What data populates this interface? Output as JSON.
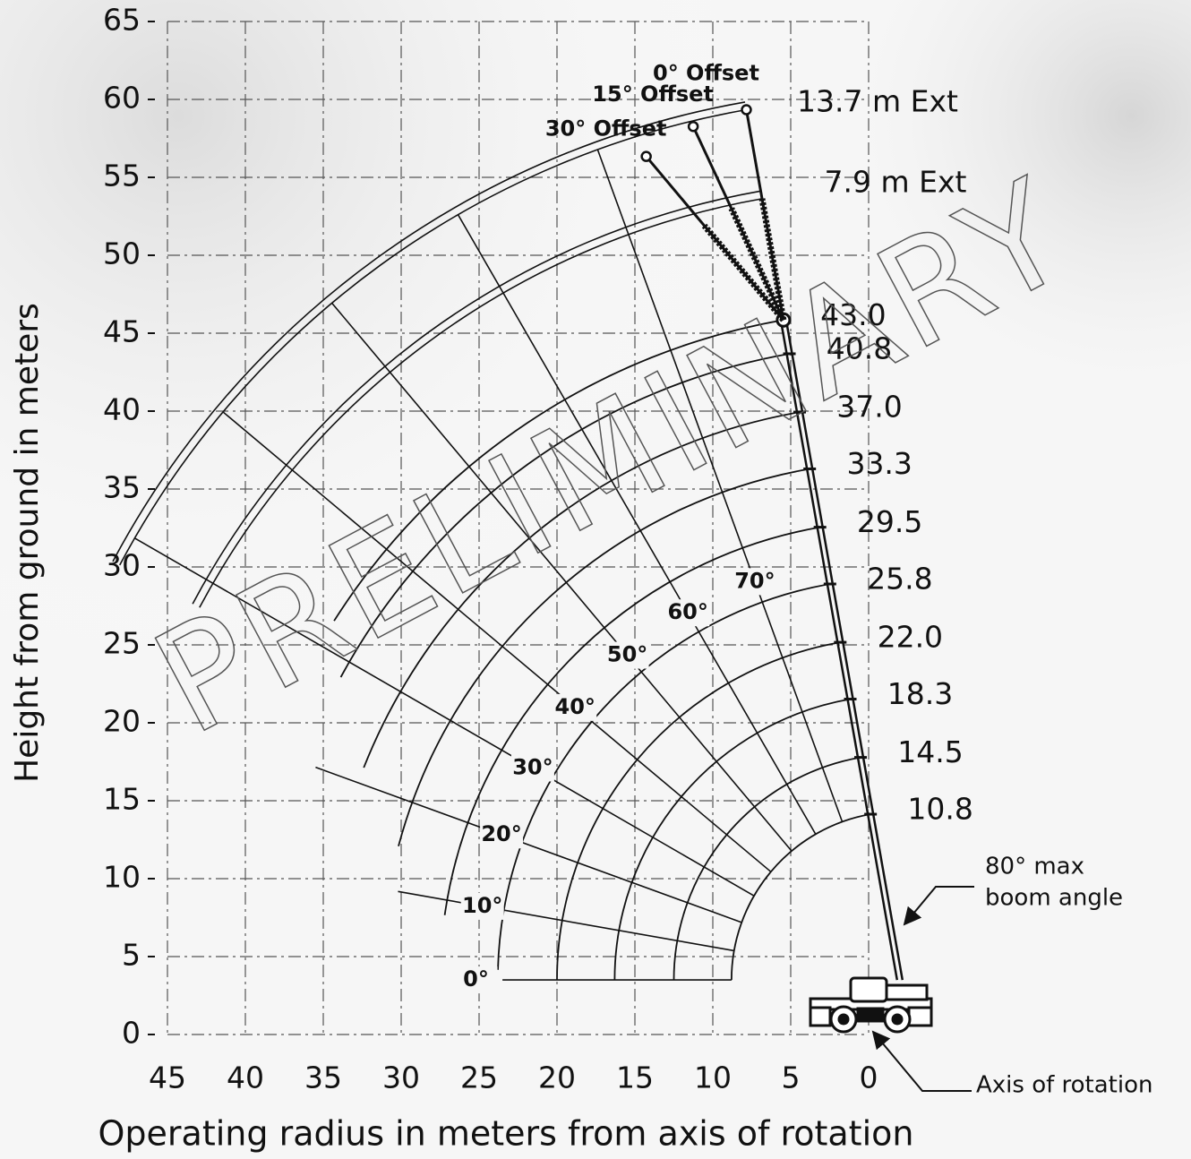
{
  "chart_data": {
    "type": "range",
    "xlabel": "Operating radius in meters from axis of rotation",
    "ylabel": "Height from ground in meters",
    "xlim": [
      45,
      0
    ],
    "ylim": [
      0,
      65
    ],
    "xticks": [
      45,
      40,
      35,
      30,
      25,
      20,
      15,
      10,
      5,
      0
    ],
    "yticks": [
      0,
      5,
      10,
      15,
      20,
      25,
      30,
      35,
      40,
      45,
      50,
      55,
      60,
      65
    ],
    "grid": true,
    "boom_lengths": {
      "values": [
        10.8,
        14.5,
        18.3,
        22.0,
        25.8,
        29.5,
        33.3,
        37.0,
        40.8,
        43.0
      ],
      "value_labels": [
        "10.8",
        "14.5",
        "18.3",
        "22.0",
        "25.8",
        "29.5",
        "33.3",
        "37.0",
        "40.8",
        "43.0"
      ]
    },
    "boom_angles": {
      "values": [
        0,
        10,
        20,
        30,
        40,
        50,
        60,
        70
      ],
      "value_labels": [
        "0°",
        "10°",
        "20°",
        "30°",
        "40°",
        "50°",
        "60°",
        "70°"
      ]
    },
    "extensions": {
      "values": [
        7.9,
        13.7
      ],
      "value_labels": [
        "7.9 m Ext",
        "13.7 m Ext"
      ]
    },
    "offsets": {
      "values": [
        0,
        15,
        30
      ],
      "value_labels": [
        "0° Offset",
        "15° Offset",
        "30° Offset"
      ]
    },
    "max_boom_angle": 80,
    "max_angle_annotation": [
      "80° max",
      "boom angle"
    ],
    "axis_annotation": "Axis of rotation",
    "watermark": "PRELIMINARY"
  }
}
